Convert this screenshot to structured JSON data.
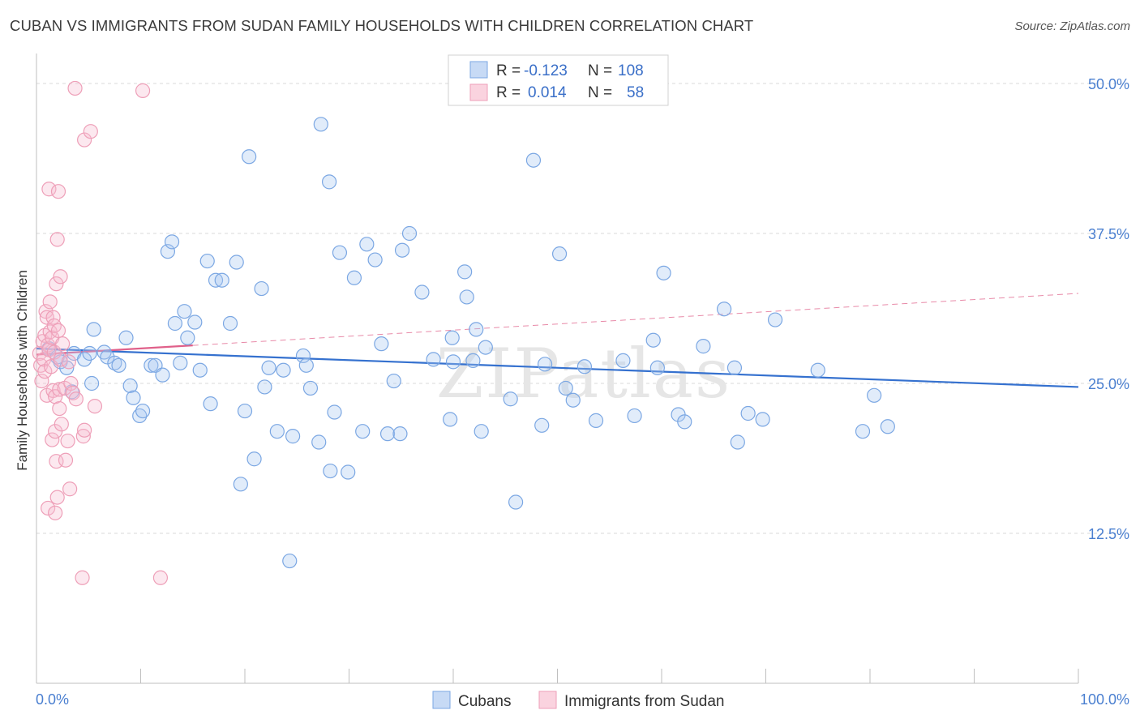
{
  "title": "CUBAN VS IMMIGRANTS FROM SUDAN FAMILY HOUSEHOLDS WITH CHILDREN CORRELATION CHART",
  "source": "Source: ZipAtlas.com",
  "watermark": "ZIPatlas",
  "legend_top": {
    "rows": [
      {
        "r_label": "R =",
        "r_value": "-0.123",
        "n_label": "N =",
        "n_value": "108",
        "color": "#8ab4ec"
      },
      {
        "r_label": "R =",
        "r_value": "0.014",
        "n_label": "N =",
        "n_value": "58",
        "color": "#f2a8c0"
      }
    ]
  },
  "legend_bottom": [
    {
      "label": "Cubans",
      "color": "#8ab4ec"
    },
    {
      "label": "Immigrants from Sudan",
      "color": "#f2a8c0"
    }
  ],
  "chart_data": {
    "type": "scatter",
    "title": "CUBAN VS IMMIGRANTS FROM SUDAN FAMILY HOUSEHOLDS WITH CHILDREN CORRELATION CHART",
    "xlabel": "",
    "ylabel": "Family Households with Children",
    "xlim": [
      0,
      100
    ],
    "ylim": [
      0,
      52.5
    ],
    "x_tick_labels": [
      "0.0%",
      "100.0%"
    ],
    "y_ticks": [
      12.5,
      25.0,
      37.5,
      50.0
    ],
    "y_tick_labels": [
      "12.5%",
      "25.0%",
      "37.5%",
      "50.0%"
    ],
    "grid": true,
    "legend_position": "top-center",
    "series": [
      {
        "name": "Cubans",
        "color": "#4a86d8",
        "trend": {
          "x0": 0,
          "y0": 27.9,
          "x1": 100,
          "y1": 24.7,
          "style": "solid"
        },
        "points": [
          [
            1.2,
            27.9
          ],
          [
            2.0,
            27.2
          ],
          [
            2.3,
            26.8
          ],
          [
            2.9,
            26.3
          ],
          [
            3.4,
            24.3
          ],
          [
            3.6,
            27.5
          ],
          [
            4.6,
            27.0
          ],
          [
            5.1,
            27.5
          ],
          [
            5.5,
            29.5
          ],
          [
            5.3,
            25.0
          ],
          [
            6.5,
            27.6
          ],
          [
            6.8,
            27.2
          ],
          [
            7.5,
            26.7
          ],
          [
            7.9,
            26.5
          ],
          [
            8.6,
            28.8
          ],
          [
            9.0,
            24.8
          ],
          [
            9.3,
            23.8
          ],
          [
            9.9,
            22.3
          ],
          [
            10.2,
            22.7
          ],
          [
            11.0,
            26.5
          ],
          [
            11.4,
            26.5
          ],
          [
            12.1,
            25.7
          ],
          [
            12.6,
            36.0
          ],
          [
            13.0,
            36.8
          ],
          [
            13.3,
            30.0
          ],
          [
            13.8,
            26.7
          ],
          [
            14.2,
            31.0
          ],
          [
            14.5,
            28.8
          ],
          [
            15.2,
            30.1
          ],
          [
            15.7,
            26.1
          ],
          [
            16.4,
            35.2
          ],
          [
            16.7,
            23.3
          ],
          [
            17.2,
            33.6
          ],
          [
            17.8,
            33.6
          ],
          [
            18.6,
            30.0
          ],
          [
            19.2,
            35.1
          ],
          [
            19.6,
            16.6
          ],
          [
            20.0,
            22.7
          ],
          [
            20.4,
            43.9
          ],
          [
            20.9,
            18.7
          ],
          [
            21.6,
            32.9
          ],
          [
            21.9,
            24.7
          ],
          [
            22.3,
            26.3
          ],
          [
            23.1,
            21.0
          ],
          [
            23.7,
            26.1
          ],
          [
            24.3,
            10.2
          ],
          [
            24.6,
            20.6
          ],
          [
            25.6,
            27.3
          ],
          [
            25.9,
            26.5
          ],
          [
            26.3,
            24.6
          ],
          [
            27.1,
            20.1
          ],
          [
            27.3,
            46.6
          ],
          [
            28.1,
            41.8
          ],
          [
            28.2,
            17.7
          ],
          [
            28.6,
            22.6
          ],
          [
            29.1,
            35.9
          ],
          [
            29.9,
            17.6
          ],
          [
            30.5,
            33.8
          ],
          [
            31.3,
            21.0
          ],
          [
            31.7,
            36.6
          ],
          [
            32.5,
            35.3
          ],
          [
            33.1,
            28.3
          ],
          [
            33.7,
            20.8
          ],
          [
            34.3,
            25.2
          ],
          [
            34.9,
            20.8
          ],
          [
            35.1,
            36.1
          ],
          [
            35.8,
            37.5
          ],
          [
            37.0,
            32.6
          ],
          [
            38.1,
            27.0
          ],
          [
            39.7,
            22.0
          ],
          [
            39.9,
            28.8
          ],
          [
            40.0,
            26.8
          ],
          [
            41.1,
            34.3
          ],
          [
            41.3,
            32.2
          ],
          [
            41.9,
            26.9
          ],
          [
            42.2,
            29.5
          ],
          [
            42.7,
            21.0
          ],
          [
            43.1,
            28.0
          ],
          [
            45.5,
            23.7
          ],
          [
            46.0,
            15.1
          ],
          [
            47.7,
            43.6
          ],
          [
            48.5,
            21.5
          ],
          [
            48.8,
            26.6
          ],
          [
            50.2,
            35.8
          ],
          [
            50.8,
            24.6
          ],
          [
            51.5,
            23.6
          ],
          [
            52.6,
            26.4
          ],
          [
            53.7,
            21.9
          ],
          [
            56.3,
            26.9
          ],
          [
            57.4,
            22.3
          ],
          [
            59.2,
            28.6
          ],
          [
            59.6,
            26.3
          ],
          [
            60.2,
            34.2
          ],
          [
            61.6,
            22.4
          ],
          [
            62.2,
            21.8
          ],
          [
            64.0,
            28.1
          ],
          [
            66.0,
            31.2
          ],
          [
            67.0,
            26.3
          ],
          [
            67.3,
            20.1
          ],
          [
            68.3,
            22.5
          ],
          [
            69.7,
            22.0
          ],
          [
            70.9,
            30.3
          ],
          [
            75.0,
            26.1
          ],
          [
            79.3,
            21.0
          ],
          [
            80.4,
            24.0
          ],
          [
            81.7,
            21.4
          ]
        ]
      },
      {
        "name": "Immigrants from Sudan",
        "color": "#f2a8c0",
        "trend": {
          "x0": 0,
          "y0": 27.4,
          "x1": 100,
          "y1": 32.5,
          "style": "dashed",
          "solid_until_x": 15
        },
        "points": [
          [
            0.3,
            27.5
          ],
          [
            0.4,
            26.5
          ],
          [
            0.5,
            25.2
          ],
          [
            0.6,
            28.5
          ],
          [
            0.7,
            27.0
          ],
          [
            0.8,
            29.0
          ],
          [
            0.8,
            26.0
          ],
          [
            0.9,
            31.0
          ],
          [
            1.0,
            30.5
          ],
          [
            1.0,
            24.0
          ],
          [
            1.1,
            14.6
          ],
          [
            1.1,
            28.2
          ],
          [
            1.2,
            27.8
          ],
          [
            1.2,
            41.2
          ],
          [
            1.3,
            31.8
          ],
          [
            1.3,
            29.3
          ],
          [
            1.4,
            26.4
          ],
          [
            1.5,
            20.3
          ],
          [
            1.5,
            28.8
          ],
          [
            1.6,
            30.5
          ],
          [
            1.6,
            24.4
          ],
          [
            1.7,
            27.6
          ],
          [
            1.7,
            29.8
          ],
          [
            1.8,
            21.0
          ],
          [
            1.8,
            23.9
          ],
          [
            1.8,
            14.2
          ],
          [
            1.9,
            18.5
          ],
          [
            1.9,
            33.3
          ],
          [
            2.0,
            37.0
          ],
          [
            2.0,
            15.5
          ],
          [
            2.1,
            41.0
          ],
          [
            2.1,
            29.4
          ],
          [
            2.2,
            24.5
          ],
          [
            2.2,
            22.9
          ],
          [
            2.3,
            33.9
          ],
          [
            2.3,
            27.0
          ],
          [
            2.4,
            21.6
          ],
          [
            2.5,
            28.3
          ],
          [
            2.7,
            24.6
          ],
          [
            2.8,
            18.6
          ],
          [
            3.0,
            20.2
          ],
          [
            3.1,
            26.8
          ],
          [
            3.2,
            16.2
          ],
          [
            3.3,
            25.0
          ],
          [
            3.5,
            24.2
          ],
          [
            3.7,
            49.6
          ],
          [
            3.8,
            23.7
          ],
          [
            4.4,
            8.8
          ],
          [
            4.5,
            20.6
          ],
          [
            4.6,
            21.1
          ],
          [
            4.6,
            45.3
          ],
          [
            5.2,
            46.0
          ],
          [
            5.6,
            23.1
          ],
          [
            10.2,
            49.4
          ],
          [
            11.9,
            8.8
          ]
        ]
      }
    ]
  }
}
